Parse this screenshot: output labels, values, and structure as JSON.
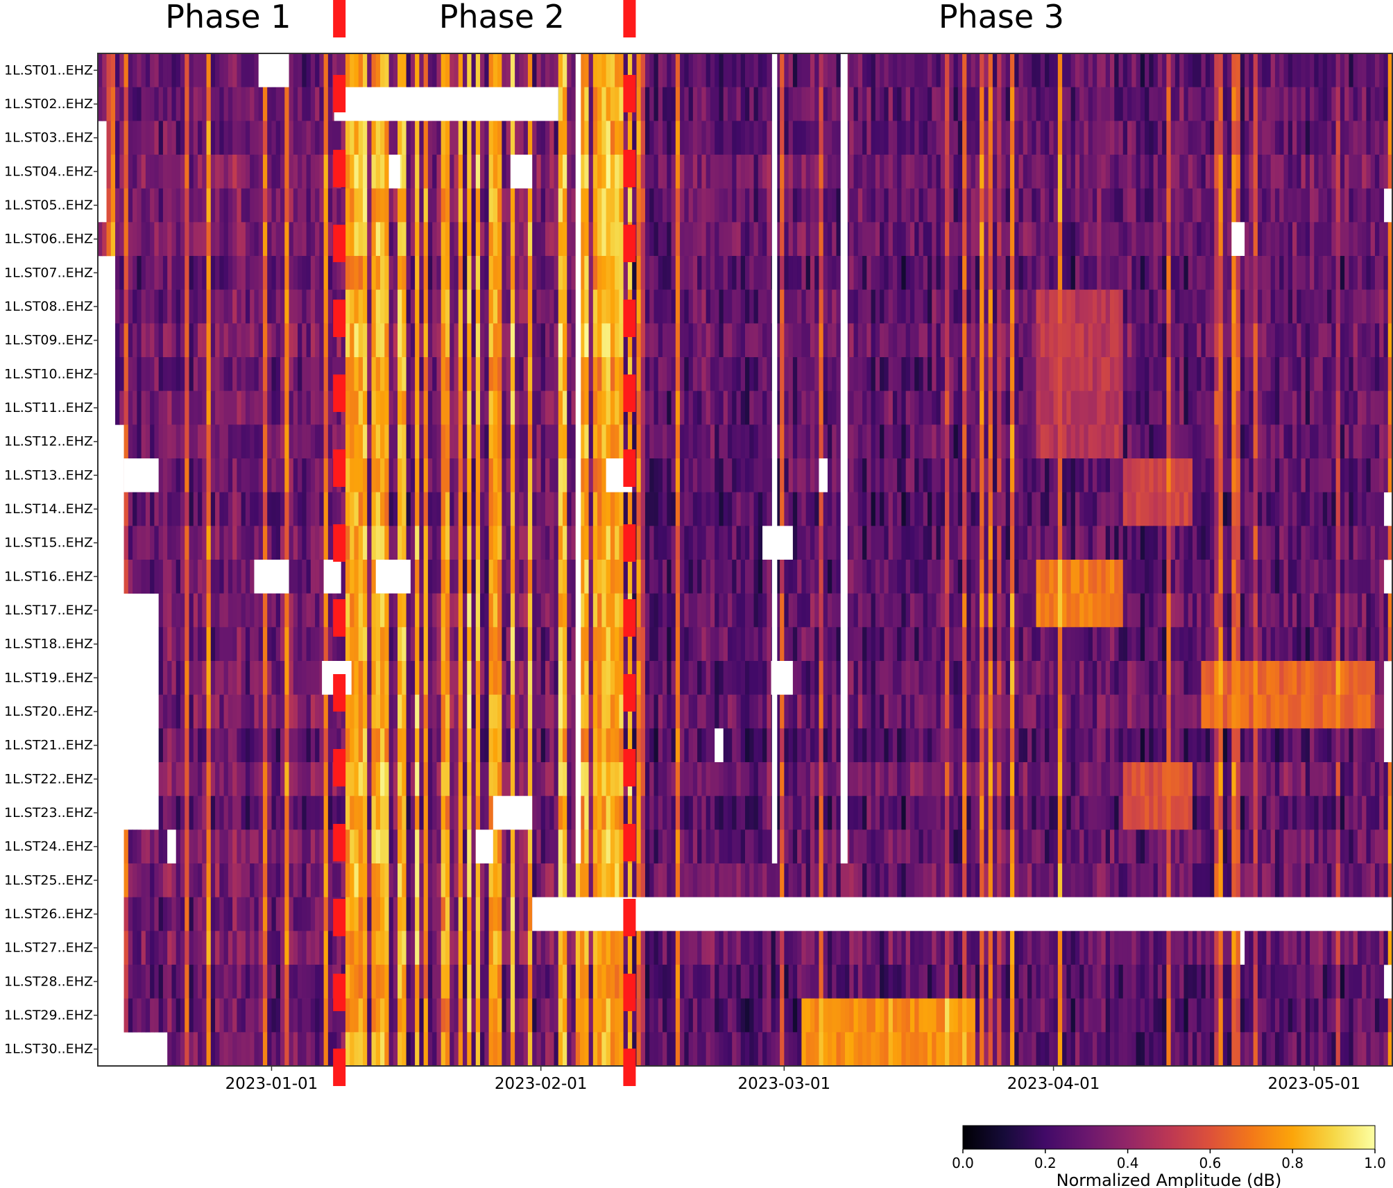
{
  "chart_data": {
    "type": "heatmap",
    "title": "",
    "xlabel": "",
    "ylabel": "",
    "stations": [
      "1L.ST01..EHZ",
      "1L.ST02..EHZ",
      "1L.ST03..EHZ",
      "1L.ST04..EHZ",
      "1L.ST05..EHZ",
      "1L.ST06..EHZ",
      "1L.ST07..EHZ",
      "1L.ST08..EHZ",
      "1L.ST09..EHZ",
      "1L.ST10..EHZ",
      "1L.ST11..EHZ",
      "1L.ST12..EHZ",
      "1L.ST13..EHZ",
      "1L.ST14..EHZ",
      "1L.ST15..EHZ",
      "1L.ST16..EHZ",
      "1L.ST17..EHZ",
      "1L.ST18..EHZ",
      "1L.ST19..EHZ",
      "1L.ST20..EHZ",
      "1L.ST21..EHZ",
      "1L.ST22..EHZ",
      "1L.ST23..EHZ",
      "1L.ST24..EHZ",
      "1L.ST25..EHZ",
      "1L.ST26..EHZ",
      "1L.ST27..EHZ",
      "1L.ST28..EHZ",
      "1L.ST29..EHZ",
      "1L.ST30..EHZ"
    ],
    "x_range_days": [
      -20,
      129
    ],
    "x_ticks": [
      {
        "label": "2023-01-01",
        "day": 0
      },
      {
        "label": "2023-02-01",
        "day": 31
      },
      {
        "label": "2023-03-01",
        "day": 59
      },
      {
        "label": "2023-04-01",
        "day": 90
      },
      {
        "label": "2023-05-01",
        "day": 120
      }
    ],
    "phases": [
      {
        "label": "Phase 1",
        "center_day": -5
      },
      {
        "label": "Phase 2",
        "center_day": 26.5
      },
      {
        "label": "Phase 3",
        "center_day": 84
      }
    ],
    "phase_boundaries_day": [
      7.8,
      41.2
    ],
    "boundary_color": "#ff1a1a",
    "station_start_day": [
      -20,
      -20,
      -19,
      -19,
      -19,
      -20,
      -18,
      -18,
      -18,
      -18,
      -18,
      -17,
      -17,
      -17,
      -17,
      -17,
      -13,
      -13,
      -13,
      -13,
      -13,
      -13,
      -13,
      -17,
      -17,
      -17,
      -17,
      -17,
      -17,
      -12
    ],
    "station_end_day": [
      129,
      129,
      129,
      129,
      128,
      129,
      129,
      129,
      129,
      129,
      129,
      129,
      129,
      128,
      129,
      128,
      129,
      129,
      128,
      128,
      128,
      129,
      129,
      129,
      129,
      129,
      129,
      128,
      129,
      129
    ],
    "gaps": [
      {
        "station": 1,
        "from": -1.5,
        "to": 2
      },
      {
        "station": 2,
        "from": 7.2,
        "to": 33
      },
      {
        "station": 4,
        "from": 27.5,
        "to": 30
      },
      {
        "station": 4,
        "from": 13.5,
        "to": 14.8
      },
      {
        "station": 6,
        "from": 110.5,
        "to": 112
      },
      {
        "station": 13,
        "from": -17,
        "to": -13
      },
      {
        "station": 13,
        "from": 38.5,
        "to": 41.5
      },
      {
        "station": 13,
        "from": 63,
        "to": 64
      },
      {
        "station": 15,
        "from": 56.5,
        "to": 60
      },
      {
        "station": 16,
        "from": -2,
        "to": 2
      },
      {
        "station": 16,
        "from": 6,
        "to": 8
      },
      {
        "station": 16,
        "from": 12,
        "to": 16
      },
      {
        "station": 19,
        "from": 5.8,
        "to": 9.2
      },
      {
        "station": 19,
        "from": 57.5,
        "to": 60
      },
      {
        "station": 21,
        "from": 51,
        "to": 52
      },
      {
        "station": 23,
        "from": 25.5,
        "to": 30
      },
      {
        "station": 24,
        "from": 23.5,
        "to": 25.5
      },
      {
        "station": 24,
        "from": -12,
        "to": -11
      },
      {
        "station": 26,
        "from": 30,
        "to": 129
      },
      {
        "station": 27,
        "from": 111.5,
        "to": 112
      }
    ],
    "full_column_gaps": [
      {
        "from": 35,
        "to": 35.6,
        "stations": [
          1,
          24
        ]
      },
      {
        "from": 57.6,
        "to": 58.2,
        "stations": [
          1,
          24
        ]
      },
      {
        "from": 65.5,
        "to": 66.3,
        "stations": [
          1,
          24
        ]
      }
    ],
    "elevated_blocks": [
      {
        "stations": [
          8,
          12
        ],
        "from": 88,
        "to": 98,
        "value": 0.5
      },
      {
        "stations": [
          16,
          17
        ],
        "from": 88,
        "to": 98,
        "value": 0.7
      },
      {
        "stations": [
          13,
          14
        ],
        "from": 98,
        "to": 106,
        "value": 0.55
      },
      {
        "stations": [
          22,
          23
        ],
        "from": 98,
        "to": 106,
        "value": 0.6
      },
      {
        "stations": [
          19,
          20
        ],
        "from": 107,
        "to": 127,
        "value": 0.65
      },
      {
        "stations": [
          29,
          30
        ],
        "from": 61,
        "to": 81,
        "value": 0.75
      }
    ],
    "colorscale": {
      "name": "inferno",
      "min": 0.0,
      "max": 1.0,
      "ticks": [
        "0.0",
        "0.2",
        "0.4",
        "0.6",
        "0.8",
        "1.0"
      ],
      "title": "Normalized Amplitude (dB)"
    }
  }
}
